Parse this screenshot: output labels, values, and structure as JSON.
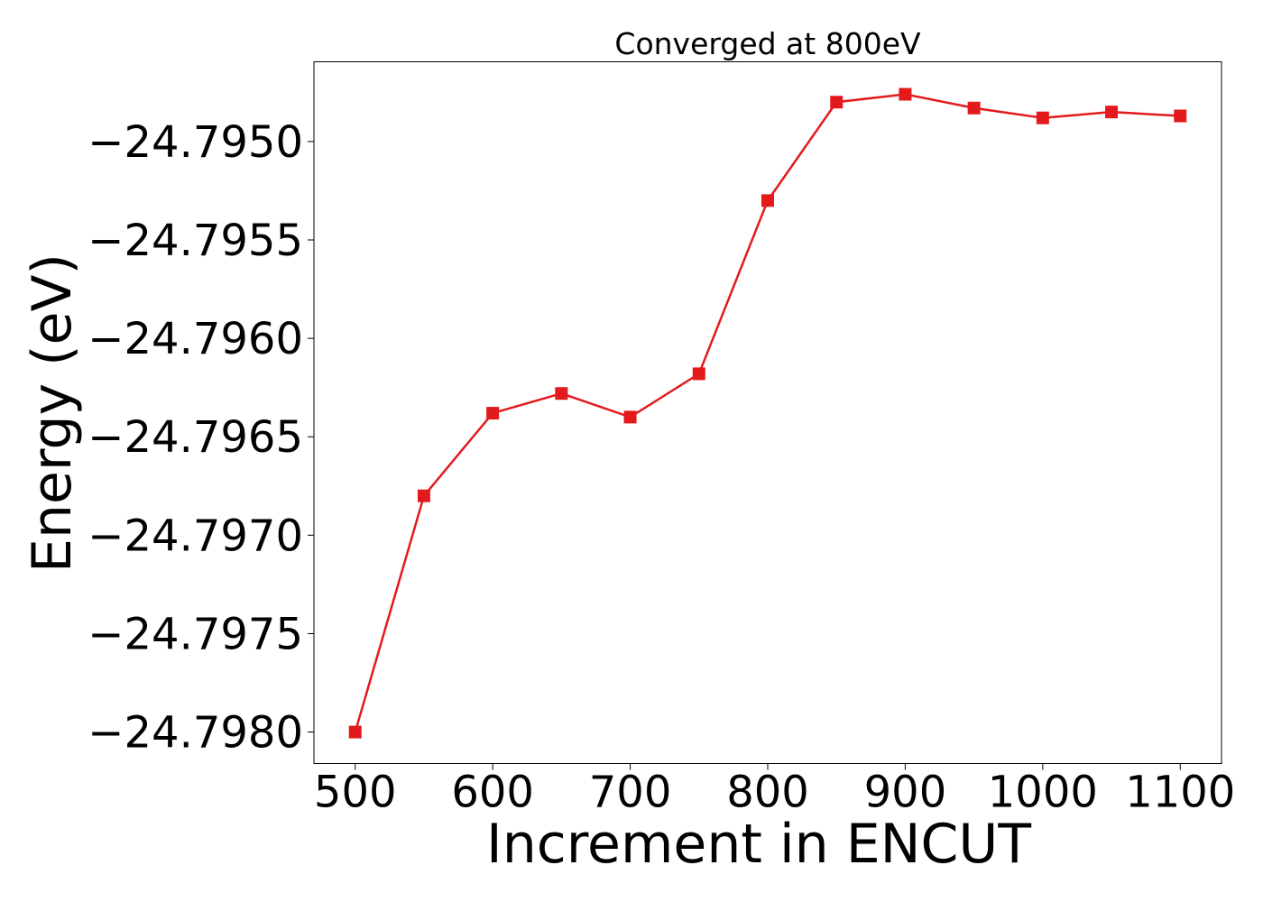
{
  "chart_data": {
    "type": "line",
    "title": "Converged at 800eV",
    "xlabel": "Increment in ENCUT",
    "ylabel": "Energy (eV)",
    "xlim": [
      470,
      1130
    ],
    "ylim": [
      -24.79816,
      -24.794595
    ],
    "xticks": [
      500,
      600,
      700,
      800,
      900,
      1000,
      1100
    ],
    "xtick_labels": [
      "500",
      "600",
      "700",
      "800",
      "900",
      "1000",
      "1100"
    ],
    "yticks": [
      -24.798,
      -24.7975,
      -24.797,
      -24.7965,
      -24.796,
      -24.7955,
      -24.795
    ],
    "ytick_labels": [
      "−24.7980",
      "−24.7975",
      "−24.7970",
      "−24.7965",
      "−24.7960",
      "−24.7955",
      "−24.7950"
    ],
    "grid": false,
    "legend": false,
    "series": [
      {
        "marker": "square",
        "color": "#e31a1c",
        "x": [
          500,
          550,
          600,
          650,
          700,
          750,
          800,
          850,
          900,
          950,
          1000,
          1050,
          1100
        ],
        "y": [
          -24.798,
          -24.7968,
          -24.79638,
          -24.79628,
          -24.7964,
          -24.79618,
          -24.7953,
          -24.7948,
          -24.79476,
          -24.79483,
          -24.79488,
          -24.79485,
          -24.79487
        ]
      }
    ]
  }
}
